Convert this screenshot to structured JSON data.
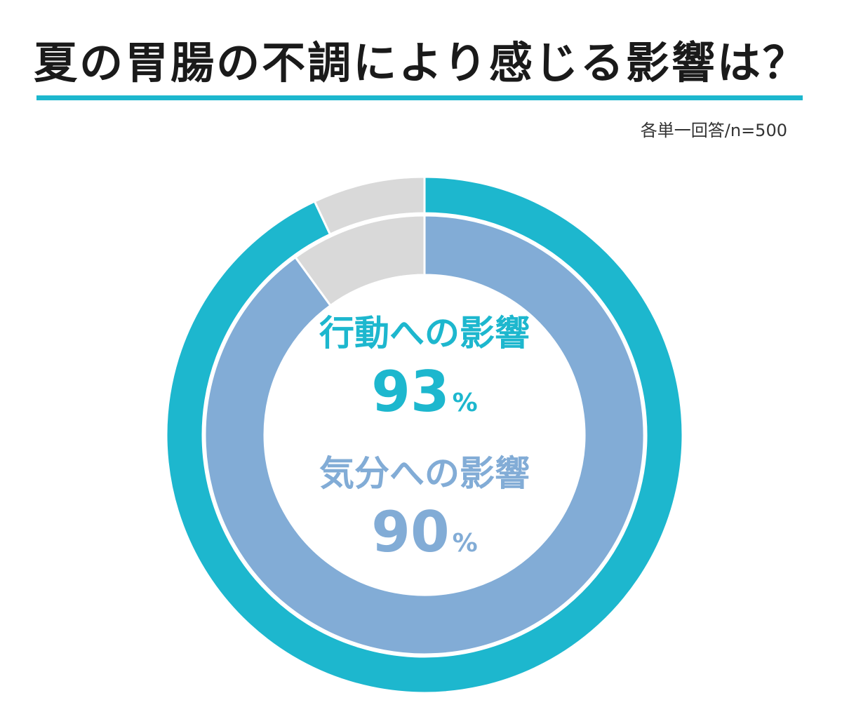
{
  "title": "夏の胃腸の不調により感じる影響は？",
  "note": "各単一回答/n=500",
  "colors": {
    "outer": "#1db7ce",
    "inner": "#82acd6",
    "rest": "#d9d9d9",
    "rule": "#1db7ce"
  },
  "chart_data": {
    "type": "pie",
    "subtype": "nested-donut",
    "series": [
      {
        "name": "行動への影響",
        "values": [
          93,
          7
        ],
        "value_label": "93",
        "unit": "%"
      },
      {
        "name": "気分への影響",
        "values": [
          90,
          10
        ],
        "value_label": "90",
        "unit": "%"
      }
    ],
    "title": "夏の胃腸の不調により感じる影響は？"
  }
}
